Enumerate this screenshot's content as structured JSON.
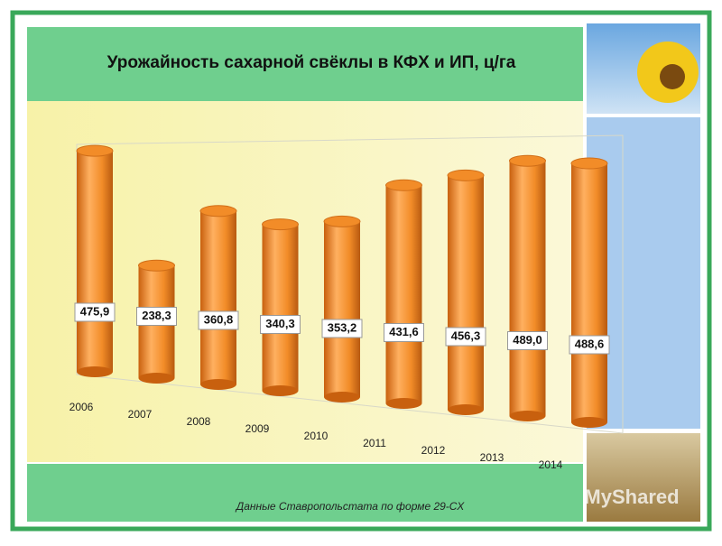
{
  "chart_data": {
    "type": "bar",
    "title": "Урожайность сахарной свёклы в КФХ и ИП, ц/га",
    "categories": [
      "2006",
      "2007",
      "2008",
      "2009",
      "2010",
      "2011",
      "2012",
      "2013",
      "2014"
    ],
    "values": [
      475.9,
      238.3,
      360.8,
      340.3,
      353.2,
      431.6,
      456.3,
      489.0,
      488.6
    ],
    "value_labels": [
      "475,9",
      "238,3",
      "360,8",
      "340,3",
      "353,2",
      "431,6",
      "456,3",
      "489,0",
      "488,6"
    ],
    "color": "#f28c28",
    "ylim": [
      0,
      550
    ],
    "source": "Данные Ставропольстата по форме 29-СХ",
    "watermark": "MyShared"
  }
}
